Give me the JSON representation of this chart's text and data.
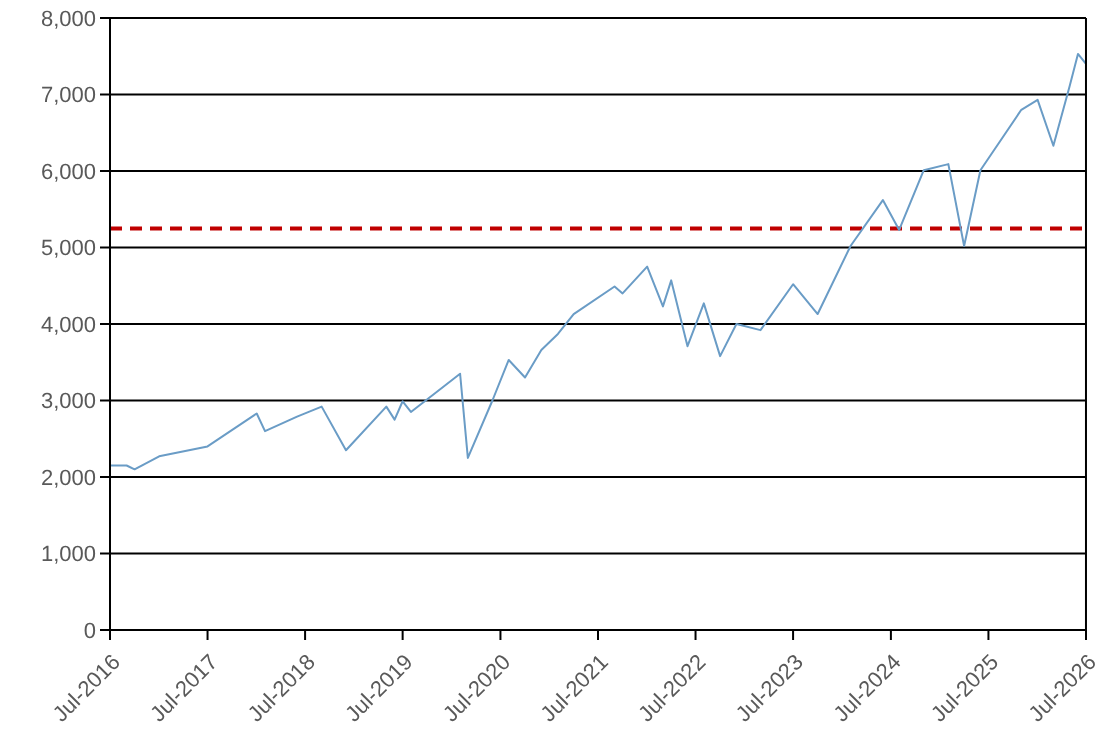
{
  "chart_data": {
    "type": "line",
    "x": [
      "2016-07",
      "2016-09",
      "2016-10",
      "2017-01",
      "2017-07",
      "2018-01",
      "2018-02",
      "2018-06",
      "2018-09",
      "2018-12",
      "2019-05",
      "2019-06",
      "2019-07",
      "2019-08",
      "2020-02",
      "2020-03",
      "2020-06",
      "2020-08",
      "2020-10",
      "2020-12",
      "2021-02",
      "2021-04",
      "2021-09",
      "2021-10",
      "2022-01",
      "2022-03",
      "2022-04",
      "2022-06",
      "2022-08",
      "2022-10",
      "2022-12",
      "2023-03",
      "2023-07",
      "2023-10",
      "2024-02",
      "2024-06",
      "2024-08",
      "2024-11",
      "2025-02",
      "2025-04",
      "2025-06",
      "2025-11",
      "2026-01",
      "2026-03",
      "2026-05",
      "2026-06",
      "2026-07"
    ],
    "series": [
      {
        "color": "#6a9cc6",
        "values": [
          2150,
          2150,
          2100,
          2270,
          2400,
          2830,
          2600,
          2790,
          2920,
          2350,
          2920,
          2750,
          2990,
          2850,
          3350,
          2250,
          3000,
          3530,
          3300,
          3660,
          3870,
          4130,
          4490,
          4400,
          4750,
          4230,
          4570,
          3710,
          4270,
          3580,
          4000,
          3920,
          4520,
          4130,
          5020,
          5620,
          5230,
          6010,
          6090,
          5020,
          6010,
          6800,
          6930,
          6330,
          7110,
          7530,
          7400
        ]
      }
    ],
    "xlim": [
      "2016-07",
      "2026-07"
    ],
    "xticks": [
      {
        "value": "2016-07",
        "label": "Jul-2016"
      },
      {
        "value": "2017-07",
        "label": "Jul-2017"
      },
      {
        "value": "2018-07",
        "label": "Jul-2018"
      },
      {
        "value": "2019-07",
        "label": "Jul-2019"
      },
      {
        "value": "2020-07",
        "label": "Jul-2020"
      },
      {
        "value": "2021-07",
        "label": "Jul-2021"
      },
      {
        "value": "2022-07",
        "label": "Jul-2022"
      },
      {
        "value": "2023-07",
        "label": "Jul-2023"
      },
      {
        "value": "2024-07",
        "label": "Jul-2024"
      },
      {
        "value": "2025-07",
        "label": "Jul-2025"
      },
      {
        "value": "2026-07",
        "label": "Jul-2026"
      }
    ],
    "ylim": [
      0,
      8000
    ],
    "yticks": [
      {
        "value": 0,
        "label": "0"
      },
      {
        "value": 1000,
        "label": "1,000"
      },
      {
        "value": 2000,
        "label": "2,000"
      },
      {
        "value": 3000,
        "label": "3,000"
      },
      {
        "value": 4000,
        "label": "4,000"
      },
      {
        "value": 5000,
        "label": "5,000"
      },
      {
        "value": 6000,
        "label": "6,000"
      },
      {
        "value": 7000,
        "label": "7,000"
      },
      {
        "value": 8000,
        "label": "8,000"
      }
    ],
    "ref_lines": [
      {
        "axis": "y",
        "value": 5250,
        "color": "#c00000",
        "line_style": "dashed"
      }
    ],
    "grid": "y",
    "legend": false,
    "marker": "none",
    "line_style": "solid"
  }
}
